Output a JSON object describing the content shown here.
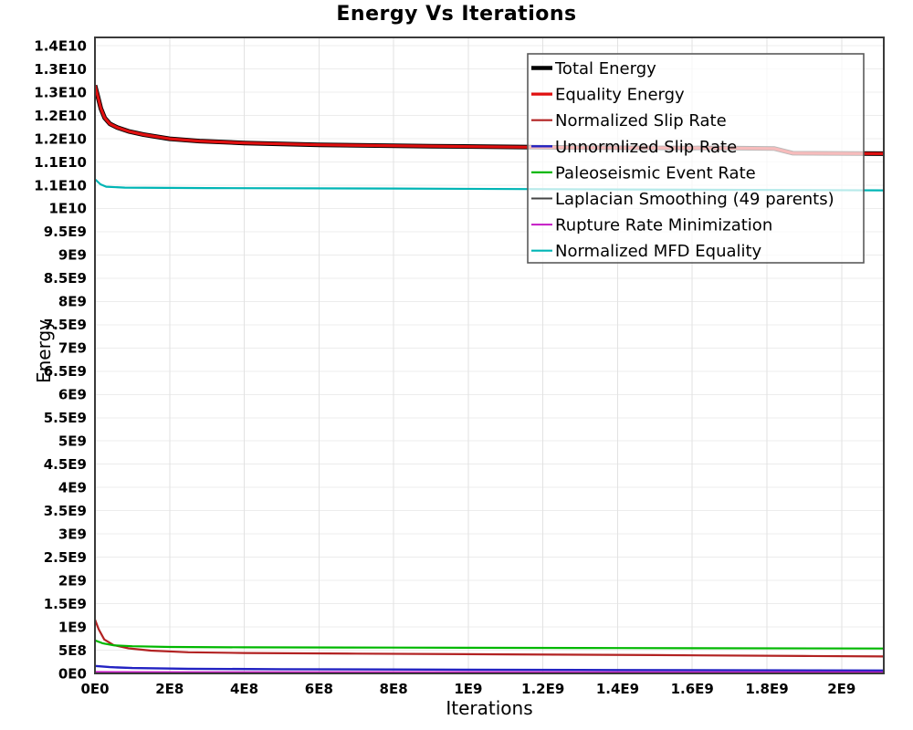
{
  "chart_data": {
    "type": "line",
    "title": "Energy Vs Iterations",
    "xlabel": "Iterations",
    "ylabel": "Energy",
    "xlim": [
      0,
      2113000000
    ],
    "ylim": [
      0,
      13680000000
    ],
    "grid": true,
    "legend_position": "inside-top-right",
    "legend_border_color": "#5a5a5a",
    "axis_color": "#3a3a3a",
    "x_grid_color": "#e2e2e2",
    "y_grid_color": "#ececec",
    "x_ticks": [
      {
        "value": 0,
        "label": "0E0"
      },
      {
        "value": 200000000,
        "label": "2E8"
      },
      {
        "value": 400000000,
        "label": "4E8"
      },
      {
        "value": 600000000,
        "label": "6E8"
      },
      {
        "value": 800000000,
        "label": "8E8"
      },
      {
        "value": 1000000000,
        "label": "1E9"
      },
      {
        "value": 1200000000,
        "label": "1.2E9"
      },
      {
        "value": 1400000000,
        "label": "1.4E9"
      },
      {
        "value": 1600000000,
        "label": "1.6E9"
      },
      {
        "value": 1800000000,
        "label": "1.8E9"
      },
      {
        "value": 2000000000,
        "label": "2E9"
      }
    ],
    "y_ticks": [
      {
        "value": 0,
        "label": "0E0"
      },
      {
        "value": 500000000,
        "label": "5E8"
      },
      {
        "value": 1000000000,
        "label": "1E9"
      },
      {
        "value": 1500000000,
        "label": "1.5E9"
      },
      {
        "value": 2000000000,
        "label": "2E9"
      },
      {
        "value": 2500000000,
        "label": "2.5E9"
      },
      {
        "value": 3000000000,
        "label": "3E9"
      },
      {
        "value": 3500000000,
        "label": "3.5E9"
      },
      {
        "value": 4000000000,
        "label": "4E9"
      },
      {
        "value": 4500000000,
        "label": "4.5E9"
      },
      {
        "value": 5000000000,
        "label": "5E9"
      },
      {
        "value": 5500000000,
        "label": "5.5E9"
      },
      {
        "value": 6000000000,
        "label": "6E9"
      },
      {
        "value": 6500000000,
        "label": "6.5E9"
      },
      {
        "value": 7000000000,
        "label": "7E9"
      },
      {
        "value": 7500000000,
        "label": "7.5E9"
      },
      {
        "value": 8000000000,
        "label": "8E9"
      },
      {
        "value": 8500000000,
        "label": "8.5E9"
      },
      {
        "value": 9000000000,
        "label": "9E9"
      },
      {
        "value": 9500000000,
        "label": "9.5E9"
      },
      {
        "value": 10000000000,
        "label": "1E10"
      },
      {
        "value": 10500000000,
        "label": "1.1E10"
      },
      {
        "value": 11000000000,
        "label": "1.1E10"
      },
      {
        "value": 11500000000,
        "label": "1.2E10"
      },
      {
        "value": 12000000000,
        "label": "1.2E10"
      },
      {
        "value": 12500000000,
        "label": "1.3E10"
      },
      {
        "value": 13000000000,
        "label": "1.3E10"
      },
      {
        "value": 13500000000,
        "label": "1.4E10"
      }
    ],
    "series": [
      {
        "id": "total-energy",
        "name": "Total Energy",
        "color": "#000000",
        "width": 5,
        "z": 1,
        "points": [
          [
            0,
            12650000000
          ],
          [
            8000000,
            12400000000
          ],
          [
            16000000,
            12150000000
          ],
          [
            26000000,
            11950000000
          ],
          [
            40000000,
            11820000000
          ],
          [
            60000000,
            11740000000
          ],
          [
            90000000,
            11660000000
          ],
          [
            130000000,
            11590000000
          ],
          [
            200000000,
            11500000000
          ],
          [
            280000000,
            11450000000
          ],
          [
            400000000,
            11410000000
          ],
          [
            600000000,
            11370000000
          ],
          [
            900000000,
            11340000000
          ],
          [
            1300000000,
            11310000000
          ],
          [
            1700000000,
            11300000000
          ],
          [
            1820000000,
            11290000000
          ],
          [
            1870000000,
            11190000000
          ],
          [
            2113000000,
            11180000000
          ]
        ]
      },
      {
        "id": "equality-energy",
        "name": "Equality Energy",
        "color": "#e01010",
        "width": 3.2,
        "z": 2,
        "points": [
          [
            0,
            12650000000
          ],
          [
            8000000,
            12400000000
          ],
          [
            16000000,
            12150000000
          ],
          [
            26000000,
            11950000000
          ],
          [
            40000000,
            11820000000
          ],
          [
            60000000,
            11740000000
          ],
          [
            90000000,
            11660000000
          ],
          [
            130000000,
            11590000000
          ],
          [
            200000000,
            11500000000
          ],
          [
            280000000,
            11450000000
          ],
          [
            400000000,
            11410000000
          ],
          [
            600000000,
            11370000000
          ],
          [
            900000000,
            11340000000
          ],
          [
            1300000000,
            11310000000
          ],
          [
            1700000000,
            11300000000
          ],
          [
            1820000000,
            11290000000
          ],
          [
            1870000000,
            11190000000
          ],
          [
            2113000000,
            11180000000
          ]
        ]
      },
      {
        "id": "normalized-slip-rate",
        "name": "Normalized Slip Rate",
        "color": "#b22222",
        "width": 2.2,
        "z": 3,
        "points": [
          [
            0,
            1160000000
          ],
          [
            10000000,
            950000000
          ],
          [
            25000000,
            730000000
          ],
          [
            50000000,
            610000000
          ],
          [
            90000000,
            540000000
          ],
          [
            150000000,
            490000000
          ],
          [
            250000000,
            455000000
          ],
          [
            400000000,
            440000000
          ],
          [
            700000000,
            425000000
          ],
          [
            1100000000,
            410000000
          ],
          [
            1500000000,
            395000000
          ],
          [
            1900000000,
            375000000
          ],
          [
            2113000000,
            365000000
          ]
        ]
      },
      {
        "id": "unnormlized-slip-rate",
        "name": "Unnormlized Slip Rate",
        "color": "#2222c2",
        "width": 2.4,
        "z": 5,
        "points": [
          [
            0,
            160000000
          ],
          [
            40000000,
            135000000
          ],
          [
            100000000,
            115000000
          ],
          [
            250000000,
            100000000
          ],
          [
            500000000,
            90000000
          ],
          [
            900000000,
            82000000
          ],
          [
            1400000000,
            72000000
          ],
          [
            2113000000,
            62000000
          ]
        ]
      },
      {
        "id": "paleoseismic-event-rate",
        "name": "Paleoseismic Event Rate",
        "color": "#00b800",
        "width": 2.2,
        "z": 4,
        "points": [
          [
            0,
            710000000
          ],
          [
            20000000,
            650000000
          ],
          [
            50000000,
            605000000
          ],
          [
            100000000,
            585000000
          ],
          [
            200000000,
            570000000
          ],
          [
            400000000,
            562000000
          ],
          [
            800000000,
            555000000
          ],
          [
            1400000000,
            545000000
          ],
          [
            2113000000,
            535000000
          ]
        ]
      },
      {
        "id": "laplacian-smoothing",
        "name": "Laplacian Smoothing (49 parents)",
        "color": "#444444",
        "width": 2,
        "z": 6,
        "points": [
          [
            0,
            12000000
          ],
          [
            2113000000,
            8000000
          ]
        ]
      },
      {
        "id": "rupture-rate-minimization",
        "name": "Rupture Rate Minimization",
        "color": "#c41ac4",
        "width": 2,
        "z": 7,
        "points": [
          [
            0,
            32000000
          ],
          [
            300000000,
            28000000
          ],
          [
            2113000000,
            24000000
          ]
        ]
      },
      {
        "id": "normalized-mfd-equality",
        "name": "Normalized MFD Equality",
        "color": "#00b5b5",
        "width": 2.2,
        "z": 8,
        "points": [
          [
            0,
            10630000000
          ],
          [
            15000000,
            10520000000
          ],
          [
            30000000,
            10470000000
          ],
          [
            80000000,
            10450000000
          ],
          [
            300000000,
            10440000000
          ],
          [
            800000000,
            10430000000
          ],
          [
            1400000000,
            10410000000
          ],
          [
            2113000000,
            10390000000
          ]
        ]
      }
    ]
  }
}
